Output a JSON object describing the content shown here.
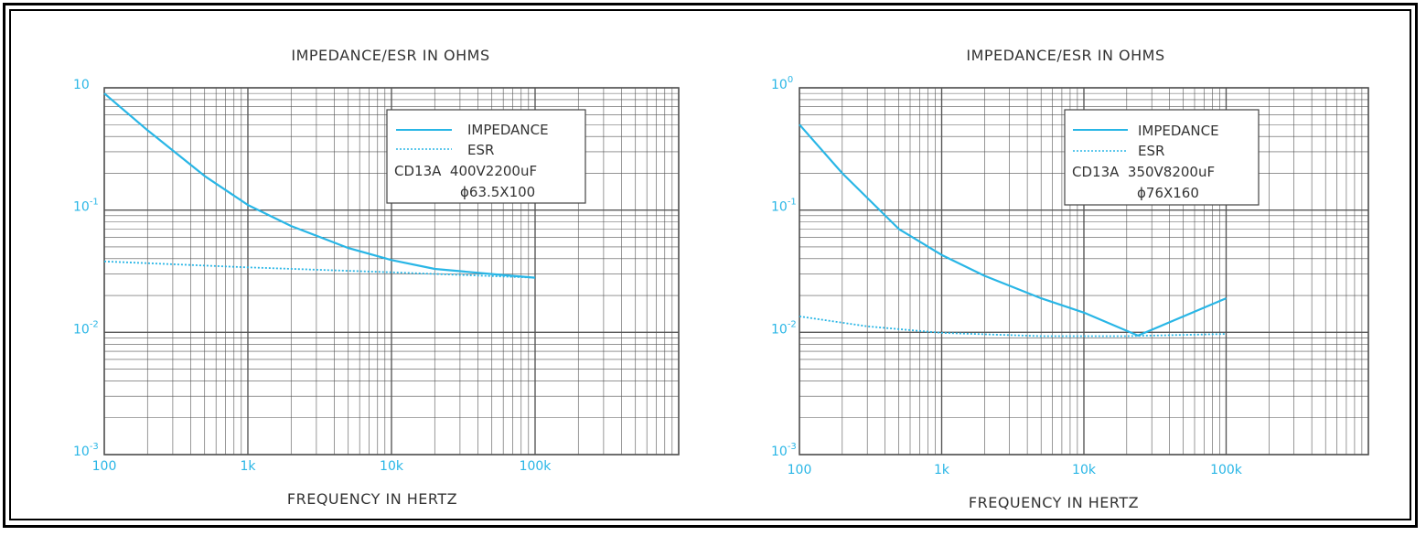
{
  "colors": {
    "series": "#29b6e6",
    "grid": "#555555",
    "text": "#333333"
  },
  "chart_data": [
    {
      "type": "line",
      "title": "IMPEDANCE/ESR IN OHMS",
      "xlabel": "FREQUENCY IN HERTZ",
      "ylabel": "",
      "x_scale": "log",
      "y_scale": "log",
      "xlim": [
        100,
        1000000
      ],
      "ylim": [
        0.001,
        1
      ],
      "x_tick_labels": [
        "100",
        "1k",
        "10k",
        "100k"
      ],
      "y_tick_labels": [
        {
          "base": "10",
          "exp": ""
        },
        {
          "base": "10",
          "exp": "-1"
        },
        {
          "base": "10",
          "exp": "-2"
        },
        {
          "base": "10",
          "exp": "-3"
        }
      ],
      "grid": true,
      "legend": {
        "placement": "top-right",
        "entries": [
          "IMPEDANCE",
          "ESR"
        ],
        "note_line1": "CD13A  400V2200uF",
        "note_line2": "ϕ63.5X100"
      },
      "series": [
        {
          "name": "IMPEDANCE",
          "style": "solid",
          "x": [
            100,
            200,
            500,
            1000,
            2000,
            5000,
            10000,
            20000,
            50000,
            100000
          ],
          "y": [
            0.9,
            0.45,
            0.19,
            0.11,
            0.074,
            0.049,
            0.039,
            0.033,
            0.03,
            0.028
          ]
        },
        {
          "name": "ESR",
          "style": "dotted",
          "x": [
            100,
            1000,
            10000,
            100000
          ],
          "y": [
            0.038,
            0.034,
            0.031,
            0.028
          ]
        }
      ]
    },
    {
      "type": "line",
      "title": "IMPEDANCE/ESR IN OHMS",
      "xlabel": "FREQUENCY IN HERTZ",
      "ylabel": "",
      "x_scale": "log",
      "y_scale": "log",
      "xlim": [
        100,
        1000000
      ],
      "ylim": [
        0.001,
        1
      ],
      "x_tick_labels": [
        "100",
        "1k",
        "10k",
        "100k"
      ],
      "y_tick_labels": [
        {
          "base": "10",
          "exp": "0"
        },
        {
          "base": "10",
          "exp": "-1"
        },
        {
          "base": "10",
          "exp": "-2"
        },
        {
          "base": "10",
          "exp": "-3"
        }
      ],
      "grid": true,
      "legend": {
        "placement": "top-right",
        "entries": [
          "IMPEDANCE",
          "ESR"
        ],
        "note_line1": "CD13A  350V8200uF",
        "note_line2": "ϕ76X160"
      },
      "series": [
        {
          "name": "IMPEDANCE",
          "style": "solid",
          "x": [
            100,
            200,
            500,
            1000,
            2000,
            5000,
            10000,
            24000,
            100000
          ],
          "y": [
            0.5,
            0.2,
            0.07,
            0.043,
            0.029,
            0.019,
            0.0145,
            0.0094,
            0.019
          ]
        },
        {
          "name": "ESR",
          "style": "dotted",
          "x": [
            100,
            300,
            1000,
            5000,
            20000,
            100000
          ],
          "y": [
            0.0135,
            0.0112,
            0.0099,
            0.0093,
            0.0093,
            0.0097
          ]
        }
      ]
    }
  ]
}
